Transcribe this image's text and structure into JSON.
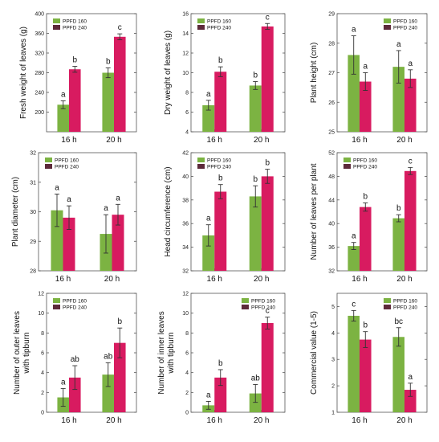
{
  "figure": {
    "colors": {
      "ppfd160": "#7cb342",
      "ppfd240": "#d81b60",
      "ppfd240_dark": "#5d2a3a",
      "ppfd160_orange": "#e8924a",
      "error_bar": "#333333"
    }
  },
  "chart_data": [
    {
      "type": "bar",
      "categories": [
        "16 h",
        "20 h"
      ],
      "ylabel": "Fresh weight of leaves (g)",
      "ylim": [
        160,
        400
      ],
      "yticks": [
        200,
        240,
        280,
        320,
        360,
        400
      ],
      "yticklabels": [
        "200",
        "240",
        "280",
        "320",
        "360",
        "400"
      ],
      "legend": {
        "placement": "top-left",
        "entries": [
          "PPFD 160",
          "PPFD 240"
        ]
      },
      "series": [
        {
          "name": "PPFD 160",
          "values": [
            215,
            280
          ],
          "errors": [
            8,
            10
          ],
          "letters": [
            "a",
            "b"
          ]
        },
        {
          "name": "PPFD 240",
          "values": [
            287,
            353
          ],
          "errors": [
            6,
            6
          ],
          "letters": [
            "b",
            "c"
          ]
        }
      ]
    },
    {
      "type": "bar",
      "categories": [
        "16 h",
        "20 h"
      ],
      "ylabel": "Dry weight of leaves (g)",
      "ylim": [
        4,
        16
      ],
      "yticks": [
        4,
        6,
        8,
        10,
        12,
        14,
        16
      ],
      "yticklabels": [
        "4",
        "6",
        "8",
        "10",
        "12",
        "14",
        "16"
      ],
      "legend": {
        "placement": "top-left",
        "entries": [
          "PPFD 160",
          "PPFD 240"
        ]
      },
      "series": [
        {
          "name": "PPFD 160",
          "values": [
            6.7,
            8.7
          ],
          "errors": [
            0.5,
            0.4
          ],
          "letters": [
            "a",
            "b"
          ]
        },
        {
          "name": "PPFD 240",
          "values": [
            10.1,
            14.7
          ],
          "errors": [
            0.5,
            0.3
          ],
          "letters": [
            "b",
            "c"
          ]
        }
      ]
    },
    {
      "type": "bar",
      "categories": [
        "16 h",
        "20 h"
      ],
      "ylabel": "Plant height (cm)",
      "ylim": [
        25,
        29
      ],
      "yticks": [
        25,
        26,
        27,
        28,
        29
      ],
      "yticklabels": [
        "25",
        "26",
        "27",
        "28",
        "29"
      ],
      "legend": {
        "placement": "top-right",
        "entries": [
          "PPFD 160",
          "PPFD 240"
        ]
      },
      "series": [
        {
          "name": "PPFD 160",
          "values": [
            27.6,
            27.2
          ],
          "errors": [
            0.65,
            0.55
          ],
          "letters": [
            "a",
            "a"
          ]
        },
        {
          "name": "PPFD 240",
          "values": [
            26.7,
            26.8
          ],
          "errors": [
            0.3,
            0.3
          ],
          "letters": [
            "a",
            "a"
          ]
        }
      ]
    },
    {
      "type": "bar",
      "categories": [
        "16 h",
        "20 h"
      ],
      "ylabel": "Plant diameter (cm)",
      "ylim": [
        28,
        32
      ],
      "yticks": [
        28,
        29,
        30,
        31,
        32
      ],
      "yticklabels": [
        "28",
        "29",
        "30",
        "31",
        "32"
      ],
      "legend": {
        "placement": "top-left",
        "entries": [
          "PPFD 160",
          "PPFD 240"
        ]
      },
      "series": [
        {
          "name": "PPFD 160",
          "values": [
            30.05,
            29.25
          ],
          "errors": [
            0.55,
            0.65
          ],
          "letters": [
            "a",
            "a"
          ]
        },
        {
          "name": "PPFD 240",
          "values": [
            29.8,
            29.9
          ],
          "errors": [
            0.4,
            0.35
          ],
          "letters": [
            "a",
            "a"
          ]
        }
      ]
    },
    {
      "type": "bar",
      "categories": [
        "16 h",
        "20 h"
      ],
      "ylabel": "Head circumference (cm)",
      "ylim": [
        32,
        42
      ],
      "yticks": [
        32,
        34,
        36,
        38,
        40,
        42
      ],
      "yticklabels": [
        "32",
        "34",
        "36",
        "38",
        "40",
        "42"
      ],
      "legend": {
        "placement": "top-left",
        "entries": [
          "PPFD 160",
          "PPFD 240"
        ]
      },
      "series": [
        {
          "name": "PPFD 160",
          "values": [
            35.0,
            38.3
          ],
          "errors": [
            0.9,
            0.9
          ],
          "letters": [
            "a",
            "b"
          ]
        },
        {
          "name": "PPFD 240",
          "values": [
            38.7,
            40.0
          ],
          "errors": [
            0.6,
            0.6
          ],
          "letters": [
            "b",
            "b"
          ]
        }
      ]
    },
    {
      "type": "bar",
      "categories": [
        "16 h",
        "20 h"
      ],
      "ylabel": "Number of leaves per plant",
      "ylim": [
        32,
        52
      ],
      "yticks": [
        32,
        36,
        40,
        44,
        48,
        52
      ],
      "yticklabels": [
        "32",
        "36",
        "40",
        "44",
        "48",
        "52"
      ],
      "legend": {
        "placement": "top-left",
        "entries": [
          "PPFD 160",
          "PPFD 240"
        ]
      },
      "series": [
        {
          "name": "PPFD 160",
          "values": [
            36.2,
            40.9
          ],
          "errors": [
            0.6,
            0.6
          ],
          "letters": [
            "a",
            "b"
          ]
        },
        {
          "name": "PPFD 240",
          "values": [
            42.8,
            48.9
          ],
          "errors": [
            0.7,
            0.6
          ],
          "letters": [
            "b",
            "c"
          ]
        }
      ]
    },
    {
      "type": "bar",
      "categories": [
        "16 h",
        "20 h"
      ],
      "ylabel": "Number of outer leaves with tipburn",
      "ylim": [
        0,
        12
      ],
      "yticks": [
        0,
        2,
        4,
        6,
        8,
        10,
        12
      ],
      "yticklabels": [
        "0",
        "2",
        "4",
        "6",
        "8",
        "10",
        "12"
      ],
      "legend": {
        "placement": "top-left",
        "entries": [
          "PPFD 160",
          "PPFD 240"
        ]
      },
      "series": [
        {
          "name": "PPFD 160",
          "values": [
            1.5,
            3.8
          ],
          "errors": [
            0.9,
            1.2
          ],
          "letters": [
            "a",
            "ab"
          ]
        },
        {
          "name": "PPFD 240",
          "values": [
            3.5,
            7.0
          ],
          "errors": [
            1.2,
            1.5
          ],
          "letters": [
            "ab",
            "b"
          ]
        }
      ]
    },
    {
      "type": "bar",
      "categories": [
        "16 h",
        "20 h"
      ],
      "ylabel": "Number of inner leaves with tipburn",
      "ylim": [
        0,
        12
      ],
      "yticks": [
        0,
        2,
        4,
        6,
        8,
        10,
        12
      ],
      "yticklabels": [
        "0",
        "2",
        "4",
        "6",
        "8",
        "10",
        "12"
      ],
      "legend": {
        "placement": "top-right",
        "entries": [
          "PPFD 160",
          "PPFD 240"
        ]
      },
      "series": [
        {
          "name": "PPFD 160",
          "values": [
            0.7,
            1.9
          ],
          "errors": [
            0.4,
            0.9
          ],
          "letters": [
            "a",
            "ab"
          ]
        },
        {
          "name": "PPFD 240",
          "values": [
            3.5,
            9.0
          ],
          "errors": [
            0.8,
            0.6
          ],
          "letters": [
            "b",
            "c"
          ]
        }
      ]
    },
    {
      "type": "bar",
      "categories": [
        "16 h",
        "20 h"
      ],
      "ylabel": "Commercial value (1-5)",
      "ylim": [
        1,
        5.5
      ],
      "yticks": [
        1,
        2,
        3,
        4,
        5
      ],
      "yticklabels": [
        "1",
        "2",
        "3",
        "4",
        "5"
      ],
      "legend": {
        "placement": "top-right",
        "entries": [
          "PPFD 160",
          "PPFD 240"
        ]
      },
      "series": [
        {
          "name": "PPFD 160",
          "values": [
            4.65,
            3.85
          ],
          "errors": [
            0.2,
            0.35
          ],
          "letters": [
            "c",
            "bc"
          ]
        },
        {
          "name": "PPFD 240",
          "values": [
            3.75,
            1.85
          ],
          "errors": [
            0.3,
            0.25
          ],
          "letters": [
            "b",
            "a"
          ]
        }
      ]
    }
  ]
}
